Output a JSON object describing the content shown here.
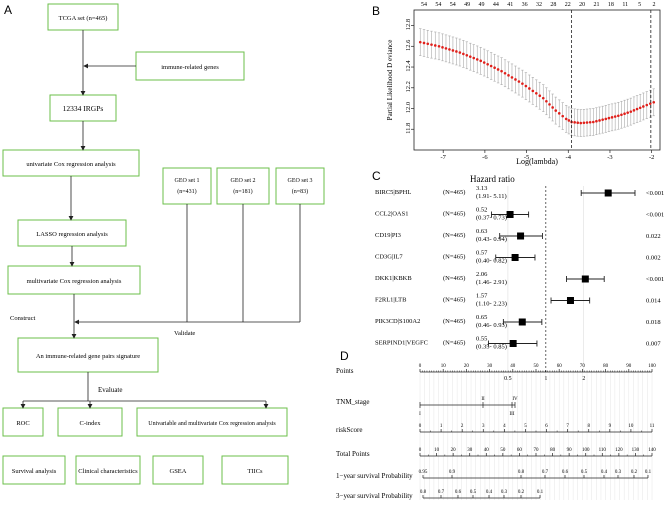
{
  "panel_a": {
    "label": "A",
    "boxes": {
      "tcga": "TCGA set (n=465)",
      "immune_genes": "immune-related genes",
      "irgps": "12334 IRGPs",
      "univariate": "univariate Cox regression analysis",
      "geo1_line1": "GEO set 1",
      "geo1_line2": "(n=431)",
      "geo2_line1": "GEO set 2",
      "geo2_line2": "(n=181)",
      "geo3_line1": "GEO set 3",
      "geo3_line2": "(n=83)",
      "lasso": "LASSO regression analysis",
      "multivariate": "multivariate Cox regression analysis",
      "signature": "An immune-related gene pairs signature",
      "roc": "ROC",
      "cindex": "C-index",
      "univ_multi": "Univariable and multivariate Cox regression analysis",
      "survival": "Survival analysis",
      "clinical": "Clinical characteristics",
      "gsea": "GSEA",
      "tiics": "TIICs"
    },
    "edge_labels": {
      "construct": "Construct",
      "validate": "Validate",
      "evaluate": "Evaluate"
    }
  },
  "panel_b": {
    "label": "B",
    "chart_data": {
      "type": "line",
      "title": "",
      "xlabel": "Log(lambda)",
      "ylabel": "Partial Likelihood D eviance",
      "xlim": [
        -7.7,
        -1.8
      ],
      "ylim": [
        11.6,
        12.95
      ],
      "x_ticks": [
        "-7",
        "-6",
        "-5",
        "-4",
        "-3",
        "-2"
      ],
      "y_ticks": [
        "11.8",
        "12.0",
        "12.2",
        "12.4",
        "12.6",
        "12.8"
      ],
      "top_counts": [
        "54",
        "54",
        "54",
        "49",
        "49",
        "44",
        "41",
        "36",
        "32",
        "28",
        "22",
        "20",
        "21",
        "18",
        "11",
        "5",
        "2"
      ],
      "vlines_x": [
        -3.92,
        -2.02
      ],
      "curve_points": [
        [
          -7.55,
          12.64
        ],
        [
          -7.1,
          12.6
        ],
        [
          -6.6,
          12.54
        ],
        [
          -6.1,
          12.46
        ],
        [
          -5.6,
          12.36
        ],
        [
          -5.1,
          12.24
        ],
        [
          -4.6,
          12.1
        ],
        [
          -4.3,
          11.98
        ],
        [
          -4.05,
          11.9
        ],
        [
          -3.92,
          11.87
        ],
        [
          -3.7,
          11.86
        ],
        [
          -3.4,
          11.87
        ],
        [
          -3.1,
          11.9
        ],
        [
          -2.8,
          11.93
        ],
        [
          -2.5,
          11.97
        ],
        [
          -2.2,
          12.02
        ],
        [
          -1.95,
          12.06
        ]
      ],
      "error_half_width": 0.13
    }
  },
  "panel_c": {
    "label": "C",
    "header": "Hazard  ratio",
    "chart_data": {
      "type": "forest",
      "reference_line": 1,
      "axis_ticks": [
        "0.5",
        "1",
        "2"
      ],
      "rows": [
        {
          "name": "BIRC5|BPHL",
          "n": "(N=465)",
          "hr": 3.13,
          "hr_text": "3.13",
          "ci_text": "(1.91- 5.11)",
          "low": 1.91,
          "high": 5.11,
          "p": "<0.001"
        },
        {
          "name": "CCL2|OAS1",
          "n": "(N=465)",
          "hr": 0.52,
          "hr_text": "0.52",
          "ci_text": "(0.37- 0.73)",
          "low": 0.37,
          "high": 0.73,
          "p": "<0.001"
        },
        {
          "name": "CD19|PI3",
          "n": "(N=465)",
          "hr": 0.63,
          "hr_text": "0.63",
          "ci_text": "(0.43- 0.94)",
          "low": 0.43,
          "high": 0.94,
          "p": "0.022"
        },
        {
          "name": "CD3G|IL7",
          "n": "(N=465)",
          "hr": 0.57,
          "hr_text": "0.57",
          "ci_text": "(0.40- 0.82)",
          "low": 0.4,
          "high": 0.82,
          "p": "0.002"
        },
        {
          "name": "DKK1|KBKB",
          "n": "(N=465)",
          "hr": 2.06,
          "hr_text": "2.06",
          "ci_text": "(1.46- 2.91)",
          "low": 1.46,
          "high": 2.91,
          "p": "<0.001"
        },
        {
          "name": "F2RL1|LTB",
          "n": "(N=465)",
          "hr": 1.57,
          "hr_text": "1.57",
          "ci_text": "(1.10- 2.23)",
          "low": 1.1,
          "high": 2.23,
          "p": "0.014"
        },
        {
          "name": "PIK3CD|S100A2",
          "n": "(N=465)",
          "hr": 0.65,
          "hr_text": "0.65",
          "ci_text": "(0.46- 0.93)",
          "low": 0.46,
          "high": 0.93,
          "p": "0.018"
        },
        {
          "name": "SERPIND1|VEGFC",
          "n": "(N=465)",
          "hr": 0.55,
          "hr_text": "0.55",
          "ci_text": "(0.35- 0.85)",
          "low": 0.35,
          "high": 0.85,
          "p": "0.007"
        }
      ]
    }
  },
  "panel_d": {
    "label": "D",
    "rows": {
      "points": "Points",
      "tnm": "TNM_stage",
      "risk": "riskScore",
      "total": "Total Points",
      "surv1": "1−year survival Probability",
      "surv3": "3−year survival Probability"
    },
    "points_ticks": [
      "0",
      "10",
      "20",
      "30",
      "40",
      "50",
      "60",
      "70",
      "80",
      "90",
      "100"
    ],
    "tnm_ticks": {
      "II": "II",
      "IV": "IV",
      "I": "I",
      "III": "III"
    },
    "risk_ticks": [
      "0",
      "1",
      "2",
      "3",
      "4",
      "5",
      "6",
      "7",
      "8",
      "9",
      "10",
      "11"
    ],
    "total_ticks": [
      "0",
      "10",
      "20",
      "30",
      "40",
      "50",
      "60",
      "70",
      "80",
      "90",
      "100",
      "110",
      "120",
      "130",
      "140"
    ],
    "surv1_ticks": [
      "0.95",
      "0.9",
      "0.8",
      "0.7",
      "0.6",
      "0.5",
      "0.4",
      "0.3",
      "0.2",
      "0.1"
    ],
    "surv3_ticks": [
      "0.8",
      "0.7",
      "0.6",
      "0.5",
      "0.4",
      "0.3",
      "0.2",
      "0.1"
    ]
  }
}
